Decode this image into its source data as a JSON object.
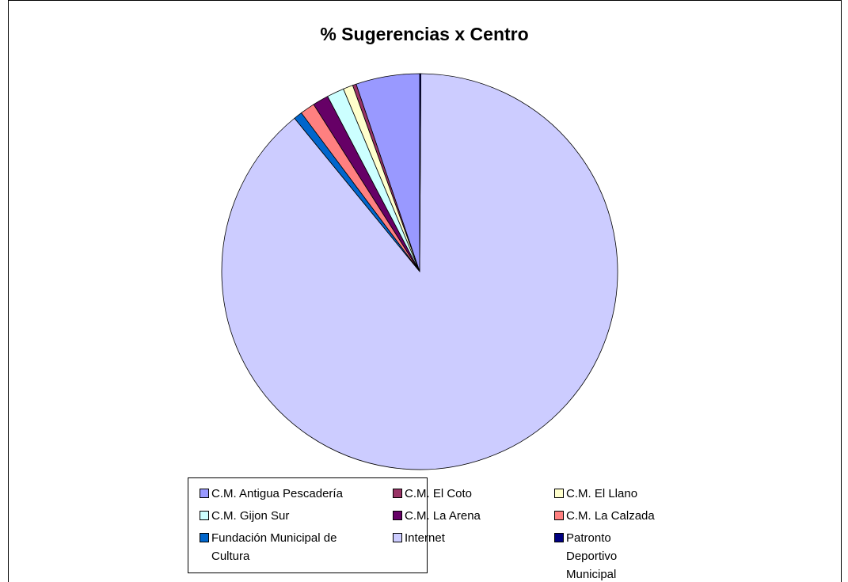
{
  "chart_data": {
    "type": "pie",
    "title": "% Sugerencias x Centro",
    "categories": [
      "C.M. Antigua Pescadería",
      "C.M. El Coto",
      "C.M. El Llano",
      "C.M. Gijon Sur",
      "C.M. La Arena",
      "C.M. La Calzada",
      "Fundación Municipal de Cultura",
      "Internet",
      "Patronto Deportivo Municipal"
    ],
    "values": [
      5.2,
      0.3,
      0.8,
      1.4,
      1.3,
      1.2,
      0.7,
      89.0,
      0.1
    ],
    "colors": [
      "#9999ff",
      "#993366",
      "#ffffcc",
      "#ccffff",
      "#660066",
      "#ff8080",
      "#0066cc",
      "#ccccff",
      "#000080"
    ],
    "legend": "bottom"
  }
}
